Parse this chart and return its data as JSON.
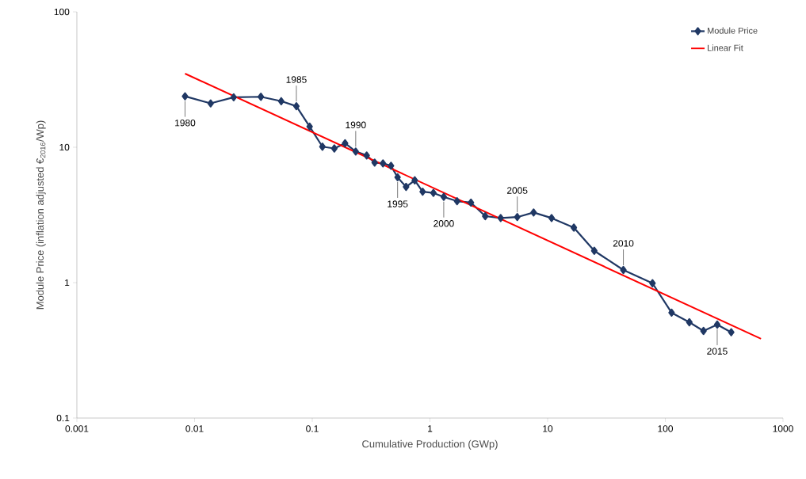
{
  "chart_data": {
    "type": "line",
    "xlabel": "Cumulative Production (GWp)",
    "ylabel": "Module Price (inflation adjusted €$_{2016}$/Wp)",
    "log": "xy",
    "xlim": [
      0.001,
      1000
    ],
    "ylim": [
      0.1,
      100
    ],
    "xticks": [
      0.001,
      0.01,
      0.1,
      1,
      10,
      100,
      1000
    ],
    "yticks": [
      0.1,
      1,
      10,
      100
    ],
    "grid": false,
    "legend": "top right",
    "series": [
      {
        "name": "Module Price",
        "color": "#203864",
        "marker": "diamond",
        "x": [
          0.0083,
          0.0137,
          0.0215,
          0.0366,
          0.0545,
          0.0733,
          0.095,
          0.122,
          0.154,
          0.19,
          0.234,
          0.29,
          0.339,
          0.399,
          0.467,
          0.531,
          0.627,
          0.743,
          0.867,
          1.07,
          1.31,
          1.7,
          2.23,
          2.95,
          3.99,
          5.52,
          7.6,
          10.8,
          16.7,
          24.9,
          44,
          77.8,
          113,
          160,
          211,
          276,
          363
        ],
        "values": [
          23.8,
          21.1,
          23.4,
          23.6,
          21.9,
          20.1,
          14.2,
          10.1,
          9.8,
          10.7,
          9.3,
          8.7,
          7.7,
          7.6,
          7.3,
          6.0,
          5.1,
          5.7,
          4.7,
          4.6,
          4.3,
          4.0,
          3.9,
          3.1,
          3.0,
          3.05,
          3.3,
          3.0,
          2.55,
          1.72,
          1.24,
          0.99,
          0.6,
          0.51,
          0.44,
          0.49,
          0.43
        ]
      },
      {
        "name": "Linear Fit",
        "color": "#ff0000",
        "marker": "none",
        "x": [
          0.0083,
          650
        ],
        "values": [
          35,
          0.385
        ]
      }
    ],
    "annotations": [
      {
        "text": "1980",
        "x": 0.0083,
        "y": 23.8
      },
      {
        "text": "1985",
        "x": 0.0733,
        "y": 20.1
      },
      {
        "text": "1990",
        "x": 0.234,
        "y": 9.3
      },
      {
        "text": "1995",
        "x": 0.531,
        "y": 6.0
      },
      {
        "text": "2000",
        "x": 1.31,
        "y": 4.3
      },
      {
        "text": "2005",
        "x": 5.52,
        "y": 3.05
      },
      {
        "text": "2010",
        "x": 44,
        "y": 1.24
      },
      {
        "text": "2015",
        "x": 276,
        "y": 0.49
      }
    ]
  }
}
